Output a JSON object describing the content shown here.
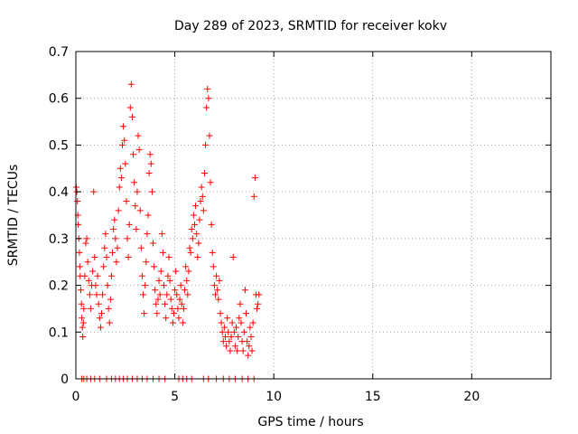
{
  "chart_data": {
    "type": "scatter",
    "title": "Day 289 of 2023, SRMTID for receiver kokv",
    "xlabel": "GPS time / hours",
    "ylabel": "SRMTID / TECUs",
    "xlim": [
      0,
      24
    ],
    "ylim": [
      0,
      0.7
    ],
    "xticks": [
      0,
      5,
      10,
      15,
      20
    ],
    "yticks": [
      0,
      0.1,
      0.2,
      0.3,
      0.4,
      0.5,
      0.6,
      0.7
    ],
    "xtick_labels": [
      "0",
      "5",
      "10",
      "15",
      "20"
    ],
    "ytick_labels": [
      "0",
      "0.1",
      "0.2",
      "0.3",
      "0.4",
      "0.5",
      "0.6",
      "0.7"
    ],
    "grid": true,
    "marker": "+",
    "color": "#ff0000",
    "series": [
      {
        "name": "SRMTID",
        "points": [
          [
            0.02,
            0.41
          ],
          [
            0.05,
            0.4
          ],
          [
            0.08,
            0.38
          ],
          [
            0.1,
            0.35
          ],
          [
            0.12,
            0.33
          ],
          [
            0.15,
            0.3
          ],
          [
            0.18,
            0.27
          ],
          [
            0.2,
            0.24
          ],
          [
            0.22,
            0.22
          ],
          [
            0.25,
            0.19
          ],
          [
            0.28,
            0.16
          ],
          [
            0.3,
            0.13
          ],
          [
            0.33,
            0.11
          ],
          [
            0.35,
            0.09
          ],
          [
            0.38,
            0.12
          ],
          [
            0.4,
            0.15
          ],
          [
            0.45,
            0.22
          ],
          [
            0.5,
            0.29
          ],
          [
            0.55,
            0.3
          ],
          [
            0.6,
            0.25
          ],
          [
            0.65,
            0.21
          ],
          [
            0.7,
            0.18
          ],
          [
            0.75,
            0.15
          ],
          [
            0.8,
            0.2
          ],
          [
            0.85,
            0.23
          ],
          [
            0.9,
            0.4
          ],
          [
            0.95,
            0.26
          ],
          [
            1.0,
            0.2
          ],
          [
            1.05,
            0.18
          ],
          [
            1.1,
            0.22
          ],
          [
            1.15,
            0.16
          ],
          [
            1.2,
            0.13
          ],
          [
            1.25,
            0.11
          ],
          [
            1.3,
            0.14
          ],
          [
            1.35,
            0.18
          ],
          [
            1.4,
            0.24
          ],
          [
            1.45,
            0.28
          ],
          [
            1.5,
            0.31
          ],
          [
            1.55,
            0.26
          ],
          [
            1.6,
            0.2
          ],
          [
            1.65,
            0.15
          ],
          [
            1.7,
            0.12
          ],
          [
            1.75,
            0.17
          ],
          [
            1.8,
            0.22
          ],
          [
            1.85,
            0.27
          ],
          [
            1.9,
            0.32
          ],
          [
            1.95,
            0.34
          ],
          [
            2.0,
            0.3
          ],
          [
            2.05,
            0.25
          ],
          [
            2.1,
            0.28
          ],
          [
            2.15,
            0.36
          ],
          [
            2.2,
            0.41
          ],
          [
            2.25,
            0.45
          ],
          [
            2.3,
            0.43
          ],
          [
            2.35,
            0.5
          ],
          [
            2.4,
            0.54
          ],
          [
            2.45,
            0.51
          ],
          [
            2.5,
            0.46
          ],
          [
            2.55,
            0.38
          ],
          [
            2.6,
            0.3
          ],
          [
            2.65,
            0.26
          ],
          [
            2.7,
            0.33
          ],
          [
            2.75,
            0.58
          ],
          [
            2.8,
            0.63
          ],
          [
            2.85,
            0.56
          ],
          [
            2.9,
            0.48
          ],
          [
            2.95,
            0.42
          ],
          [
            3.0,
            0.37
          ],
          [
            3.05,
            0.32
          ],
          [
            3.1,
            0.4
          ],
          [
            3.15,
            0.52
          ],
          [
            3.2,
            0.49
          ],
          [
            3.25,
            0.36
          ],
          [
            3.3,
            0.28
          ],
          [
            3.35,
            0.22
          ],
          [
            3.4,
            0.18
          ],
          [
            3.45,
            0.14
          ],
          [
            3.5,
            0.2
          ],
          [
            3.55,
            0.25
          ],
          [
            3.6,
            0.31
          ],
          [
            3.65,
            0.35
          ],
          [
            3.7,
            0.44
          ],
          [
            3.75,
            0.48
          ],
          [
            3.8,
            0.46
          ],
          [
            3.85,
            0.4
          ],
          [
            3.9,
            0.29
          ],
          [
            3.95,
            0.24
          ],
          [
            4.0,
            0.19
          ],
          [
            4.05,
            0.16
          ],
          [
            4.1,
            0.14
          ],
          [
            4.15,
            0.17
          ],
          [
            4.2,
            0.21
          ],
          [
            4.25,
            0.18
          ],
          [
            4.3,
            0.23
          ],
          [
            4.35,
            0.31
          ],
          [
            4.4,
            0.27
          ],
          [
            4.45,
            0.2
          ],
          [
            4.5,
            0.16
          ],
          [
            4.55,
            0.13
          ],
          [
            4.6,
            0.18
          ],
          [
            4.65,
            0.22
          ],
          [
            4.7,
            0.26
          ],
          [
            4.75,
            0.21
          ],
          [
            4.8,
            0.17
          ],
          [
            4.85,
            0.15
          ],
          [
            4.9,
            0.12
          ],
          [
            4.95,
            0.14
          ],
          [
            5.0,
            0.19
          ],
          [
            5.05,
            0.23
          ],
          [
            5.1,
            0.18
          ],
          [
            5.15,
            0.15
          ],
          [
            5.2,
            0.13
          ],
          [
            5.25,
            0.17
          ],
          [
            5.3,
            0.2
          ],
          [
            5.35,
            0.16
          ],
          [
            5.4,
            0.12
          ],
          [
            5.45,
            0.15
          ],
          [
            5.5,
            0.19
          ],
          [
            5.55,
            0.24
          ],
          [
            5.6,
            0.21
          ],
          [
            5.65,
            0.18
          ],
          [
            5.7,
            0.23
          ],
          [
            5.75,
            0.28
          ],
          [
            5.8,
            0.27
          ],
          [
            5.85,
            0.32
          ],
          [
            5.9,
            0.3
          ],
          [
            5.95,
            0.35
          ],
          [
            6.0,
            0.33
          ],
          [
            6.05,
            0.37
          ],
          [
            6.1,
            0.31
          ],
          [
            6.15,
            0.26
          ],
          [
            6.2,
            0.29
          ],
          [
            6.25,
            0.34
          ],
          [
            6.3,
            0.38
          ],
          [
            6.35,
            0.41
          ],
          [
            6.4,
            0.39
          ],
          [
            6.45,
            0.36
          ],
          [
            6.5,
            0.44
          ],
          [
            6.55,
            0.5
          ],
          [
            6.6,
            0.58
          ],
          [
            6.65,
            0.62
          ],
          [
            6.7,
            0.6
          ],
          [
            6.75,
            0.52
          ],
          [
            6.8,
            0.42
          ],
          [
            6.85,
            0.33
          ],
          [
            6.9,
            0.27
          ],
          [
            6.95,
            0.24
          ],
          [
            7.0,
            0.2
          ],
          [
            7.05,
            0.18
          ],
          [
            7.1,
            0.22
          ],
          [
            7.15,
            0.19
          ],
          [
            7.2,
            0.17
          ],
          [
            7.25,
            0.21
          ],
          [
            7.3,
            0.14
          ],
          [
            7.35,
            0.12
          ],
          [
            7.4,
            0.1
          ],
          [
            7.45,
            0.08
          ],
          [
            7.5,
            0.11
          ],
          [
            7.55,
            0.09
          ],
          [
            7.6,
            0.07
          ],
          [
            7.65,
            0.13
          ],
          [
            7.7,
            0.1
          ],
          [
            7.75,
            0.08
          ],
          [
            7.8,
            0.06
          ],
          [
            7.85,
            0.09
          ],
          [
            7.9,
            0.12
          ],
          [
            7.95,
            0.26
          ],
          [
            8.0,
            0.1
          ],
          [
            8.05,
            0.07
          ],
          [
            8.1,
            0.11
          ],
          [
            8.15,
            0.06
          ],
          [
            8.2,
            0.09
          ],
          [
            8.25,
            0.13
          ],
          [
            8.3,
            0.16
          ],
          [
            8.35,
            0.12
          ],
          [
            8.4,
            0.08
          ],
          [
            8.45,
            0.06
          ],
          [
            8.5,
            0.1
          ],
          [
            8.55,
            0.19
          ],
          [
            8.6,
            0.14
          ],
          [
            8.65,
            0.08
          ],
          [
            8.7,
            0.05
          ],
          [
            8.75,
            0.07
          ],
          [
            8.8,
            0.11
          ],
          [
            8.85,
            0.09
          ],
          [
            8.9,
            0.06
          ],
          [
            8.95,
            0.12
          ],
          [
            9.0,
            0.39
          ],
          [
            9.05,
            0.43
          ],
          [
            9.1,
            0.18
          ],
          [
            9.15,
            0.15
          ],
          [
            9.2,
            0.16
          ],
          [
            9.25,
            0.18
          ],
          [
            0.3,
            0.0
          ],
          [
            0.4,
            0.0
          ],
          [
            0.55,
            0.0
          ],
          [
            0.75,
            0.0
          ],
          [
            0.95,
            0.0
          ],
          [
            1.2,
            0.0
          ],
          [
            1.55,
            0.0
          ],
          [
            1.8,
            0.0
          ],
          [
            2.0,
            0.0
          ],
          [
            2.2,
            0.0
          ],
          [
            2.4,
            0.0
          ],
          [
            2.6,
            0.0
          ],
          [
            2.85,
            0.0
          ],
          [
            3.1,
            0.0
          ],
          [
            3.35,
            0.0
          ],
          [
            3.6,
            0.0
          ],
          [
            3.9,
            0.0
          ],
          [
            4.2,
            0.0
          ],
          [
            4.5,
            0.0
          ],
          [
            5.2,
            0.0
          ],
          [
            5.4,
            0.0
          ],
          [
            5.6,
            0.0
          ],
          [
            5.85,
            0.0
          ],
          [
            6.45,
            0.0
          ],
          [
            6.7,
            0.0
          ],
          [
            7.1,
            0.0
          ],
          [
            7.45,
            0.0
          ],
          [
            7.75,
            0.0
          ],
          [
            8.05,
            0.0
          ],
          [
            8.4,
            0.0
          ],
          [
            8.7,
            0.0
          ],
          [
            9.0,
            0.0
          ]
        ]
      }
    ]
  }
}
